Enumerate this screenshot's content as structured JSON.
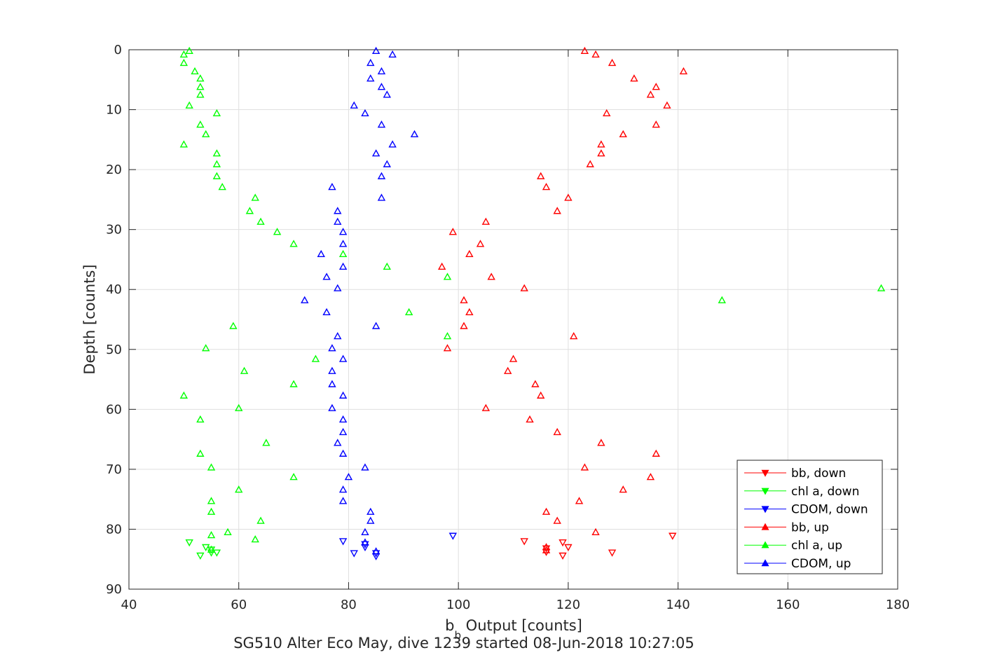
{
  "chart_data": {
    "type": "scatter",
    "title": "SG510 Alter Eco May, dive 1239 started 08-Jun-2018 10:27:05",
    "xlabel_main": "b",
    "xlabel_sub": "b",
    "xlabel_rest": " Output [counts]",
    "ylabel": "Depth [counts]",
    "xlim": [
      40,
      180
    ],
    "ylim": [
      0,
      90
    ],
    "y_reversed": true,
    "x_ticks": [
      40,
      60,
      80,
      100,
      120,
      140,
      160,
      180
    ],
    "y_ticks": [
      0,
      10,
      20,
      30,
      40,
      50,
      60,
      70,
      80,
      90
    ],
    "grid": true,
    "legend_position": "bottom-right",
    "colors": {
      "bb": "#ff0000",
      "chl": "#00ff00",
      "cdom": "#0000ff"
    },
    "series": [
      {
        "name": "bb, down",
        "color": "#ff0000",
        "marker": "triangle-down",
        "points": [
          [
            112,
            82
          ],
          [
            116,
            83.2
          ],
          [
            116,
            83.8
          ],
          [
            119,
            82.2
          ],
          [
            119,
            84.4
          ],
          [
            120,
            83
          ],
          [
            128,
            83.9
          ],
          [
            139,
            81.1
          ]
        ]
      },
      {
        "name": "chl a, down",
        "color": "#00ff00",
        "marker": "triangle-down",
        "points": [
          [
            51,
            82.2
          ],
          [
            53,
            84.4
          ],
          [
            54,
            83
          ],
          [
            55,
            83.4
          ],
          [
            55,
            83.9
          ],
          [
            56,
            83.9
          ]
        ]
      },
      {
        "name": "CDOM, down",
        "color": "#0000ff",
        "marker": "triangle-down",
        "points": [
          [
            79,
            82
          ],
          [
            81,
            84
          ],
          [
            83,
            82.5
          ],
          [
            83,
            83
          ],
          [
            85,
            84
          ],
          [
            85,
            84.5
          ],
          [
            99,
            81.1
          ]
        ]
      },
      {
        "name": "bb, up",
        "color": "#ff0000",
        "marker": "triangle-up",
        "points": [
          [
            123,
            0.2
          ],
          [
            125,
            0.8
          ],
          [
            128,
            2.2
          ],
          [
            141,
            3.6
          ],
          [
            132,
            4.8
          ],
          [
            136,
            6.2
          ],
          [
            135,
            7.5
          ],
          [
            138,
            9.3
          ],
          [
            127,
            10.6
          ],
          [
            136,
            12.5
          ],
          [
            130,
            14.1
          ],
          [
            126,
            15.8
          ],
          [
            126,
            17.3
          ],
          [
            124,
            19.1
          ],
          [
            115,
            21.1
          ],
          [
            116,
            22.9
          ],
          [
            120,
            24.7
          ],
          [
            118,
            26.9
          ],
          [
            105,
            28.7
          ],
          [
            99,
            30.4
          ],
          [
            104,
            32.4
          ],
          [
            102,
            34.1
          ],
          [
            97,
            36.2
          ],
          [
            106,
            37.9
          ],
          [
            112,
            39.8
          ],
          [
            101,
            41.8
          ],
          [
            102,
            43.8
          ],
          [
            101,
            46.1
          ],
          [
            121,
            47.8
          ],
          [
            98,
            49.8
          ],
          [
            110,
            51.6
          ],
          [
            109,
            53.6
          ],
          [
            114,
            55.8
          ],
          [
            115,
            57.7
          ],
          [
            105,
            59.8
          ],
          [
            113,
            61.7
          ],
          [
            118,
            63.8
          ],
          [
            126,
            65.6
          ],
          [
            136,
            67.4
          ],
          [
            123,
            69.7
          ],
          [
            135,
            71.3
          ],
          [
            130,
            73.4
          ],
          [
            122,
            75.3
          ],
          [
            116,
            77.1
          ],
          [
            118,
            78.6
          ],
          [
            125,
            80.5
          ],
          [
            116,
            83
          ],
          [
            116,
            83.5
          ]
        ]
      },
      {
        "name": "chl a, up",
        "color": "#00ff00",
        "marker": "triangle-up",
        "points": [
          [
            51,
            0.2
          ],
          [
            50,
            0.8
          ],
          [
            50,
            2.2
          ],
          [
            52,
            3.6
          ],
          [
            53,
            4.8
          ],
          [
            53,
            6.2
          ],
          [
            53,
            7.5
          ],
          [
            51,
            9.3
          ],
          [
            56,
            10.6
          ],
          [
            53,
            12.5
          ],
          [
            54,
            14.1
          ],
          [
            50,
            15.8
          ],
          [
            56,
            17.3
          ],
          [
            56,
            19.1
          ],
          [
            56,
            21.1
          ],
          [
            57,
            22.9
          ],
          [
            63,
            24.7
          ],
          [
            62,
            26.9
          ],
          [
            64,
            28.7
          ],
          [
            67,
            30.4
          ],
          [
            70,
            32.4
          ],
          [
            79,
            34.1
          ],
          [
            87,
            36.2
          ],
          [
            98,
            37.9
          ],
          [
            177,
            39.8
          ],
          [
            148,
            41.8
          ],
          [
            91,
            43.8
          ],
          [
            59,
            46.1
          ],
          [
            98,
            47.8
          ],
          [
            54,
            49.8
          ],
          [
            74,
            51.6
          ],
          [
            61,
            53.6
          ],
          [
            70,
            55.8
          ],
          [
            50,
            57.7
          ],
          [
            60,
            59.8
          ],
          [
            53,
            61.7
          ],
          [
            65,
            65.6
          ],
          [
            53,
            67.4
          ],
          [
            55,
            69.7
          ],
          [
            70,
            71.3
          ],
          [
            60,
            73.4
          ],
          [
            55,
            75.3
          ],
          [
            55,
            77.1
          ],
          [
            64,
            78.6
          ],
          [
            58,
            80.5
          ],
          [
            63,
            81.7
          ],
          [
            55,
            81
          ],
          [
            55,
            83.4
          ]
        ]
      },
      {
        "name": "CDOM, up",
        "color": "#0000ff",
        "marker": "triangle-up",
        "points": [
          [
            85,
            0.2
          ],
          [
            88,
            0.8
          ],
          [
            84,
            2.2
          ],
          [
            86,
            3.6
          ],
          [
            84,
            4.8
          ],
          [
            86,
            6.2
          ],
          [
            87,
            7.5
          ],
          [
            81,
            9.3
          ],
          [
            83,
            10.6
          ],
          [
            86,
            12.5
          ],
          [
            92,
            14.1
          ],
          [
            88,
            15.8
          ],
          [
            85,
            17.3
          ],
          [
            87,
            19.1
          ],
          [
            86,
            21.1
          ],
          [
            77,
            22.9
          ],
          [
            86,
            24.7
          ],
          [
            78,
            26.9
          ],
          [
            78,
            28.7
          ],
          [
            79,
            30.4
          ],
          [
            79,
            32.4
          ],
          [
            75,
            34.1
          ],
          [
            79,
            36.2
          ],
          [
            76,
            37.9
          ],
          [
            78,
            39.8
          ],
          [
            72,
            41.8
          ],
          [
            76,
            43.8
          ],
          [
            85,
            46.1
          ],
          [
            78,
            47.8
          ],
          [
            77,
            49.8
          ],
          [
            79,
            51.6
          ],
          [
            77,
            53.6
          ],
          [
            77,
            55.8
          ],
          [
            79,
            57.7
          ],
          [
            77,
            59.8
          ],
          [
            79,
            61.7
          ],
          [
            79,
            63.8
          ],
          [
            78,
            65.6
          ],
          [
            79,
            67.4
          ],
          [
            83,
            69.7
          ],
          [
            80,
            71.3
          ],
          [
            79,
            73.4
          ],
          [
            79,
            75.3
          ],
          [
            84,
            77.1
          ],
          [
            84,
            78.6
          ],
          [
            83,
            80.5
          ],
          [
            83,
            82.2
          ],
          [
            85,
            83.7
          ]
        ]
      }
    ]
  }
}
